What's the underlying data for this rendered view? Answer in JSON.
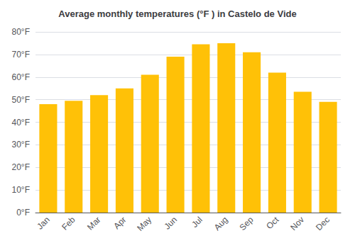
{
  "chart_data": {
    "type": "bar",
    "title": "Average monthly temperatures (°F ) in Castelo de Vide",
    "categories": [
      "Jan",
      "Feb",
      "Mar",
      "Apr",
      "May",
      "Jun",
      "Jul",
      "Aug",
      "Sep",
      "Oct",
      "Nov",
      "Dec"
    ],
    "values": [
      48,
      49.5,
      52,
      55,
      61,
      69,
      74.5,
      75,
      71,
      62,
      53.5,
      49
    ],
    "color": "#FFC107",
    "ylim": [
      0,
      80
    ],
    "yticks": [
      {
        "value": 0,
        "label": "0°F"
      },
      {
        "value": 10,
        "label": "10°F"
      },
      {
        "value": 20,
        "label": "20°F"
      },
      {
        "value": 30,
        "label": "30°F"
      },
      {
        "value": 40,
        "label": "40°F"
      },
      {
        "value": 50,
        "label": "50°F"
      },
      {
        "value": 60,
        "label": "60°F"
      },
      {
        "value": 70,
        "label": "70°F"
      },
      {
        "value": 80,
        "label": "80°F"
      }
    ],
    "grid": true
  }
}
